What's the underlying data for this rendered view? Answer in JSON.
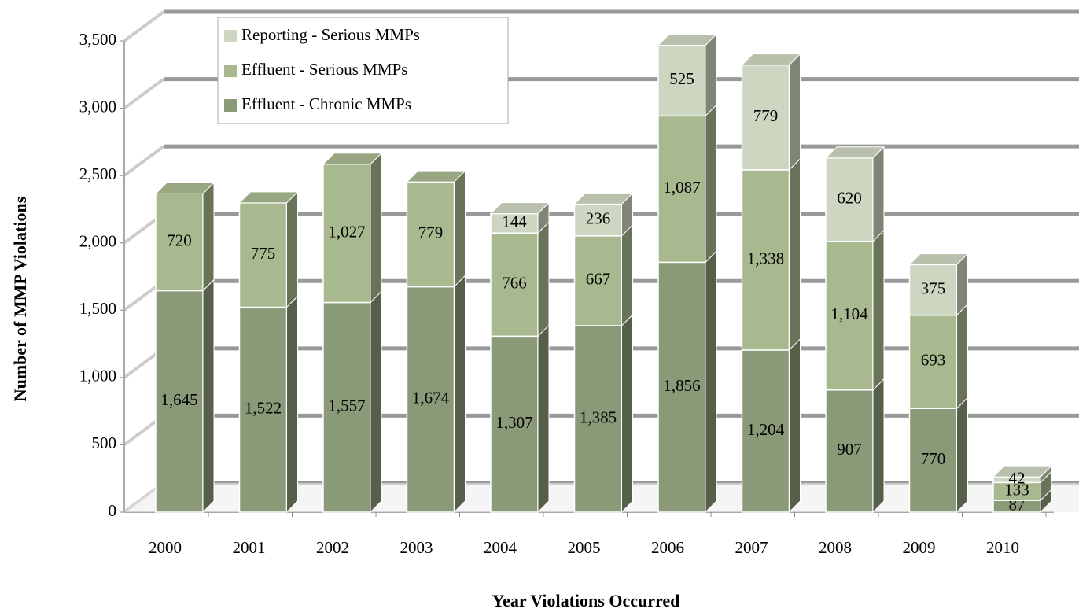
{
  "chart_data": {
    "type": "bar3d_stacked",
    "y_label": "Number of MMP Violations",
    "x_label": "Year Violations Occurred",
    "categories": [
      "2000",
      "2001",
      "2002",
      "2003",
      "2004",
      "2005",
      "2006",
      "2007",
      "2008",
      "2009",
      "2010"
    ],
    "series": [
      {
        "name": "Effluent - Chronic MMPs",
        "color": "#8a9a78",
        "values": [
          1645,
          1522,
          1557,
          1674,
          1307,
          1385,
          1856,
          1204,
          907,
          770,
          87
        ],
        "value_labels": [
          "1,645",
          "1,522",
          "1,557",
          "1,674",
          "1,307",
          "1,385",
          "1,856",
          "1,204",
          "907",
          "770",
          "87"
        ]
      },
      {
        "name": "Effluent - Serious MMPs",
        "color": "#a9b98f",
        "values": [
          720,
          775,
          1027,
          779,
          766,
          667,
          1087,
          1338,
          1104,
          693,
          133
        ],
        "value_labels": [
          "720",
          "775",
          "1,027",
          "779",
          "766",
          "667",
          "1,087",
          "1,338",
          "1,104",
          "693",
          "133"
        ]
      },
      {
        "name": "Reporting - Serious MMPs",
        "color": "#cdd6c0",
        "values": [
          null,
          null,
          null,
          null,
          144,
          236,
          525,
          779,
          620,
          375,
          42
        ]
      }
    ],
    "ylim": [
      0,
      3500
    ],
    "yticks": [
      0,
      {
        "value": 500,
        "label": "500"
      },
      {
        "value": 1000,
        "label": "1,000"
      },
      {
        "value": 1500,
        "label": "1,500"
      },
      {
        "value": 2000,
        "label": "2,000"
      },
      {
        "value": 2500,
        "label": "2,500"
      },
      {
        "value": 3000,
        "label": "3,000"
      },
      {
        "value": 3500,
        "label": "3,500"
      }
    ],
    "grid": true,
    "legend": "top-left"
  }
}
